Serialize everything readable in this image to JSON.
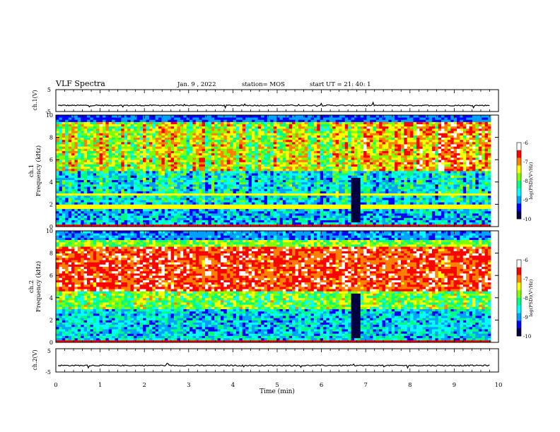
{
  "header": {
    "title": "VLF Spectra",
    "date": "Jan. 9 , 2022",
    "station": "station= MOS",
    "start": "start UT = 21: 40: 1"
  },
  "colors": {
    "colormap": [
      "#000040",
      "#0000ff",
      "#00a0ff",
      "#00ffff",
      "#00ff80",
      "#80ff00",
      "#ffff00",
      "#ff8000",
      "#ff0000",
      "#ffffff"
    ]
  },
  "chart_data": [
    {
      "type": "line",
      "panel": "ch1-voltage",
      "ylabel": "ch.1(V)",
      "ylim": [
        -5,
        5
      ],
      "yticks": [
        "5",
        "-5"
      ],
      "xlim": [
        0,
        10
      ],
      "description_values": {
        "baseline": -2.2
      }
    },
    {
      "type": "heatmap",
      "panel": "ch1-spectrogram",
      "ylabel": "ch.1\nFrequency (kHz)",
      "ylabel_line1": "ch.1",
      "ylabel_line2": "Frequency (kHz)",
      "ylim": [
        0,
        10
      ],
      "yticks": [
        "0",
        "2",
        "4",
        "6",
        "8",
        "10"
      ],
      "xlim": [
        0,
        9.83
      ],
      "colorbar": {
        "label": "log(PSD)(V²/Hz)",
        "min": -10,
        "max": -6,
        "ticks": [
          "-6",
          "-7",
          "-8",
          "-9",
          "-10"
        ]
      },
      "gap": [
        6.65,
        6.9
      ]
    },
    {
      "type": "heatmap",
      "panel": "ch2-spectrogram",
      "ylabel": "ch.2\nFrequency (kHz)",
      "ylabel_line1": "ch.2",
      "ylabel_line2": "Frequency (kHz)",
      "ylim": [
        0,
        10
      ],
      "yticks": [
        "0",
        "2",
        "4",
        "6",
        "8",
        "10"
      ],
      "xlim": [
        0,
        9.83
      ],
      "colorbar": {
        "label": "log(PSD)(V²/Hz)",
        "min": -10,
        "max": -6,
        "ticks": [
          "-6",
          "-7",
          "-8",
          "-9",
          "-10"
        ]
      },
      "gap": [
        6.65,
        6.9
      ]
    },
    {
      "type": "line",
      "panel": "ch2-voltage",
      "ylabel": "ch.2(V)",
      "ylim": [
        -5,
        5
      ],
      "yticks": [
        "5",
        "-5"
      ],
      "xlim": [
        0,
        10
      ],
      "xticks": [
        "0",
        "1",
        "2",
        "3",
        "4",
        "5",
        "6",
        "7",
        "8",
        "9",
        "10"
      ],
      "xlabel": "Time (min)",
      "description_values": {
        "baseline": -2.2
      }
    }
  ]
}
